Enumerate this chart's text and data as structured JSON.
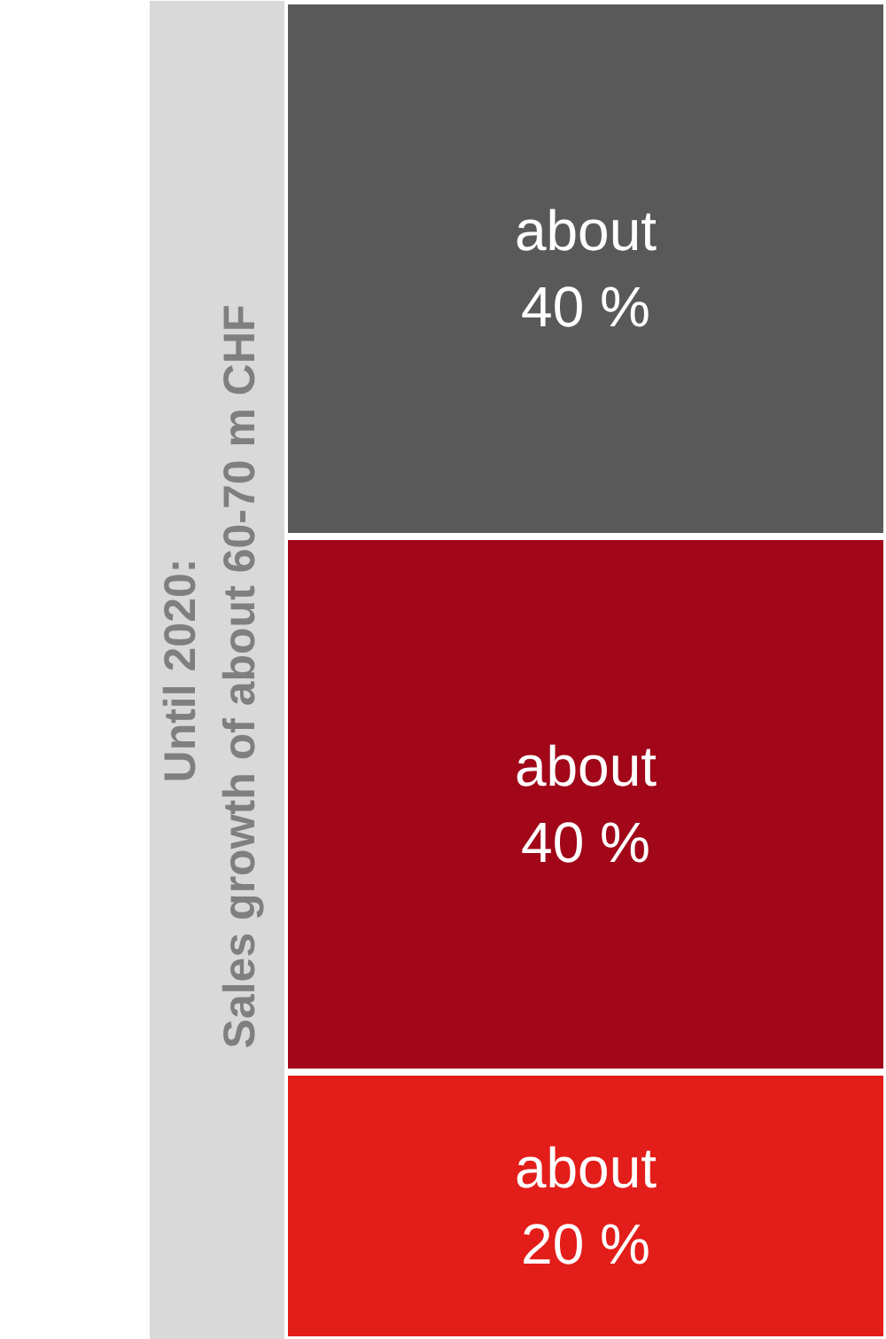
{
  "chart_data": {
    "type": "bar",
    "stacked": true,
    "categories": [
      null
    ],
    "ylabel": "Until 2020:\nSales growth of about  60-70 m CHF",
    "tick_labels": false,
    "series": [
      {
        "color": "#e31d1a",
        "values": [
          20
        ],
        "value_labels": [
          "about 20 %"
        ]
      },
      {
        "color": "#a10619",
        "values": [
          40
        ],
        "value_labels": [
          "about 40 %"
        ]
      },
      {
        "color": "#595959",
        "values": [
          40
        ],
        "value_labels": [
          "about 40 %"
        ]
      }
    ]
  }
}
